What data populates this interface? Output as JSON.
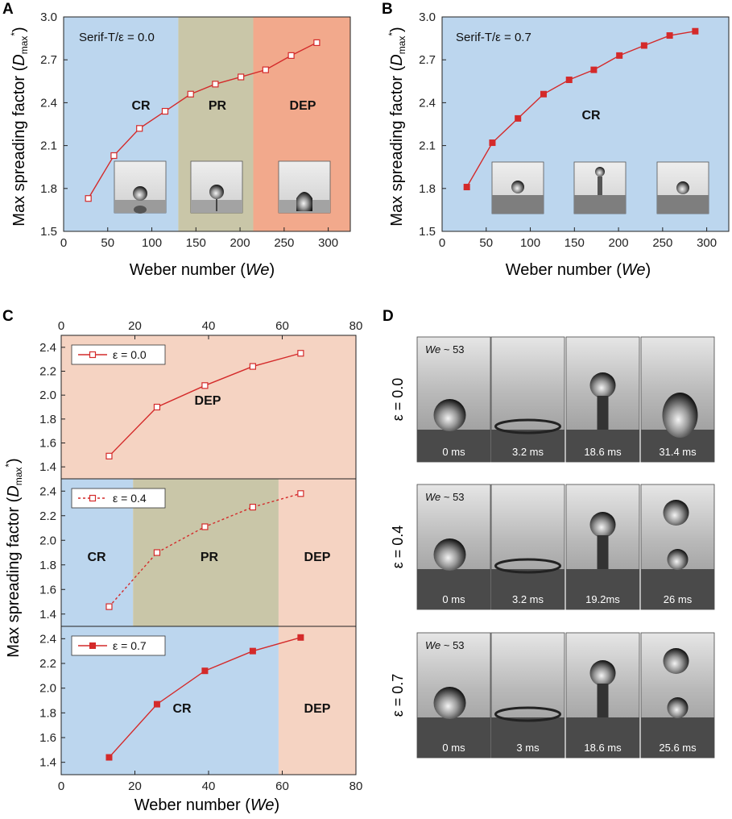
{
  "panel_labels": {
    "a": "A",
    "b": "B",
    "c": "C",
    "d": "D"
  },
  "colors": {
    "cr": "#bcd6ee",
    "pr": "#c9c6a8",
    "dep_a": "#f2a98c",
    "dep_c": "#f5d3c2",
    "line": "#d42a2a"
  },
  "chart_data": [
    {
      "id": "A",
      "type": "line",
      "title": "",
      "annotation": "Serif-T/ε = 0.0",
      "xlabel": "Weber number (We)",
      "ylabel": "Max spreading factor (Dmax*)",
      "xlim": [
        0,
        325
      ],
      "ylim": [
        1.5,
        3.0
      ],
      "xticks": [
        0,
        50,
        100,
        150,
        200,
        250,
        300
      ],
      "yticks": [
        1.5,
        1.8,
        2.1,
        2.4,
        2.7,
        3.0
      ],
      "marker": "open-square",
      "x": [
        28,
        57,
        86,
        115,
        144,
        172,
        201,
        229,
        258,
        287
      ],
      "y": [
        1.73,
        2.03,
        2.22,
        2.34,
        2.46,
        2.53,
        2.58,
        2.63,
        2.73,
        2.82
      ],
      "regions": [
        {
          "label": "CR",
          "from": 0,
          "to": 130,
          "color": "cr"
        },
        {
          "label": "PR",
          "from": 130,
          "to": 215,
          "color": "pr"
        },
        {
          "label": "DEP",
          "from": 215,
          "to": 325,
          "color": "dep_a"
        }
      ],
      "grid": false
    },
    {
      "id": "B",
      "type": "line",
      "title": "",
      "annotation": "Serif-T/ε = 0.7",
      "xlabel": "Weber number (We)",
      "ylabel": "Max spreading factor (Dmax*)",
      "xlim": [
        0,
        325
      ],
      "ylim": [
        1.5,
        3.0
      ],
      "xticks": [
        0,
        50,
        100,
        150,
        200,
        250,
        300
      ],
      "yticks": [
        1.5,
        1.8,
        2.1,
        2.4,
        2.7,
        3.0
      ],
      "marker": "filled-square",
      "x": [
        28,
        57,
        86,
        115,
        144,
        172,
        201,
        229,
        258,
        287
      ],
      "y": [
        1.81,
        2.12,
        2.29,
        2.46,
        2.56,
        2.63,
        2.73,
        2.8,
        2.87,
        2.9
      ],
      "regions": [
        {
          "label": "CR",
          "from": 0,
          "to": 325,
          "color": "cr"
        }
      ],
      "grid": false
    },
    {
      "id": "C",
      "type": "line",
      "title": "",
      "xlabel": "Weber number (We)",
      "ylabel": "Max spreading factor (Dmax*)",
      "xlim": [
        0,
        80
      ],
      "top_xticks": [
        0,
        20,
        40,
        60,
        80
      ],
      "xticks": [
        0,
        20,
        40,
        60,
        80
      ],
      "subplots": [
        {
          "legend": "ε = 0.0",
          "marker": "open-square",
          "dashed": false,
          "ylim": [
            1.3,
            2.5
          ],
          "yticks": [
            1.4,
            1.6,
            1.8,
            2.0,
            2.2,
            2.4
          ],
          "x": [
            13,
            26,
            39,
            52,
            65
          ],
          "y": [
            1.49,
            1.9,
            2.08,
            2.24,
            2.35
          ],
          "regions": [
            {
              "label": "DEP",
              "from": 0,
              "to": 80,
              "color": "dep_c"
            }
          ]
        },
        {
          "legend": "ε = 0.4",
          "marker": "open-square",
          "dashed": true,
          "ylim": [
            1.3,
            2.5
          ],
          "yticks": [
            1.4,
            1.6,
            1.8,
            2.0,
            2.2,
            2.4
          ],
          "x": [
            13,
            26,
            39,
            52,
            65
          ],
          "y": [
            1.46,
            1.9,
            2.11,
            2.27,
            2.38
          ],
          "regions": [
            {
              "label": "CR",
              "from": 0,
              "to": 19.5,
              "color": "cr"
            },
            {
              "label": "PR",
              "from": 19.5,
              "to": 59,
              "color": "pr"
            },
            {
              "label": "DEP",
              "from": 59,
              "to": 80,
              "color": "dep_c"
            }
          ]
        },
        {
          "legend": "ε = 0.7",
          "marker": "filled-square",
          "dashed": false,
          "ylim": [
            1.3,
            2.5
          ],
          "yticks": [
            1.4,
            1.6,
            1.8,
            2.0,
            2.2,
            2.4
          ],
          "x": [
            13,
            26,
            39,
            52,
            65
          ],
          "y": [
            1.44,
            1.87,
            2.14,
            2.3,
            2.41
          ],
          "regions": [
            {
              "label": "CR",
              "from": 0,
              "to": 59,
              "color": "cr"
            },
            {
              "label": "DEP",
              "from": 59,
              "to": 80,
              "color": "dep_c"
            }
          ]
        }
      ]
    }
  ],
  "panel_d": {
    "rows": [
      {
        "label": "ε = 0.0",
        "we": "We ~ 53",
        "frames": [
          "0 ms",
          "3.2 ms",
          "18.6 ms",
          "31.4 ms"
        ]
      },
      {
        "label": "ε = 0.4",
        "we": "We ~ 53",
        "frames": [
          "0 ms",
          "3.2 ms",
          "19.2ms",
          "26 ms"
        ]
      },
      {
        "label": "ε = 0.7",
        "we": "We ~ 53",
        "frames": [
          "0 ms",
          "3 ms",
          "18.6 ms",
          "25.6 ms"
        ]
      }
    ]
  }
}
